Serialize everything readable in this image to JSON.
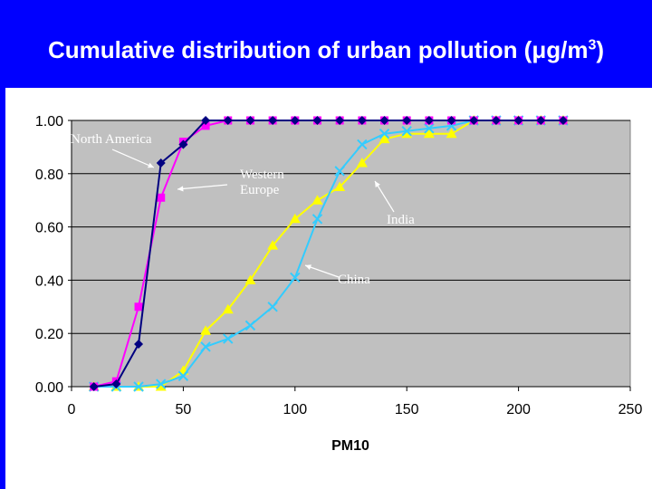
{
  "slide": {
    "title": "Cumulative distribution of urban pollution (",
    "title_unit": "μg/m",
    "title_exp": "3",
    "title_close": ")"
  },
  "colors": {
    "background": "#0000ff",
    "plot_area": "#c0c0c0",
    "north_america": "#000080",
    "western_europe": "#ff00ff",
    "india": "#ffff00",
    "china": "#33ccff"
  },
  "chart_data": {
    "type": "line",
    "xlabel": "PM10",
    "ylabel": "",
    "xlim": [
      0,
      250
    ],
    "ylim": [
      0,
      1
    ],
    "x_ticks": [
      "0",
      "50",
      "100",
      "150",
      "200",
      "250"
    ],
    "y_ticks": [
      "0.00",
      "0.20",
      "0.40",
      "0.60",
      "0.80",
      "1.00"
    ],
    "grid": true,
    "legend": "none",
    "series": [
      {
        "name": "North America",
        "marker": "diamond",
        "color": "#000080",
        "x": [
          10,
          20,
          30,
          40,
          50,
          60,
          70,
          80,
          90,
          100,
          110,
          120,
          130,
          140,
          150,
          160,
          170,
          180,
          190,
          200,
          210,
          220
        ],
        "y": [
          0.0,
          0.01,
          0.16,
          0.84,
          0.91,
          1.0,
          1.0,
          1.0,
          1.0,
          1.0,
          1.0,
          1.0,
          1.0,
          1.0,
          1.0,
          1.0,
          1.0,
          1.0,
          1.0,
          1.0,
          1.0,
          1.0
        ]
      },
      {
        "name": "Western Europe",
        "marker": "square",
        "color": "#ff00ff",
        "x": [
          10,
          20,
          30,
          40,
          50,
          60,
          70,
          80,
          90,
          100,
          110,
          120,
          130,
          140,
          150,
          160,
          170,
          180,
          190,
          200,
          210,
          220
        ],
        "y": [
          0.0,
          0.02,
          0.3,
          0.71,
          0.92,
          0.98,
          1.0,
          1.0,
          1.0,
          1.0,
          1.0,
          1.0,
          1.0,
          1.0,
          1.0,
          1.0,
          1.0,
          1.0,
          1.0,
          1.0,
          1.0,
          1.0
        ]
      },
      {
        "name": "India",
        "marker": "triangle",
        "color": "#ffff00",
        "x": [
          10,
          20,
          30,
          40,
          50,
          60,
          70,
          80,
          90,
          100,
          110,
          120,
          130,
          140,
          150,
          160,
          170,
          180,
          190,
          200,
          210,
          220
        ],
        "y": [
          0.0,
          0.0,
          0.0,
          0.0,
          0.06,
          0.21,
          0.29,
          0.4,
          0.53,
          0.63,
          0.7,
          0.75,
          0.84,
          0.93,
          0.95,
          0.95,
          0.95,
          1.0,
          1.0,
          1.0,
          1.0,
          1.0
        ]
      },
      {
        "name": "China",
        "marker": "x",
        "color": "#33ccff",
        "x": [
          10,
          20,
          30,
          40,
          50,
          60,
          70,
          80,
          90,
          100,
          110,
          120,
          130,
          140,
          150,
          160,
          170,
          180,
          190,
          200,
          210,
          220
        ],
        "y": [
          0.0,
          0.0,
          0.0,
          0.01,
          0.04,
          0.15,
          0.18,
          0.23,
          0.3,
          0.41,
          0.63,
          0.81,
          0.91,
          0.95,
          0.96,
          0.97,
          0.98,
          1.0,
          1.0,
          1.0,
          1.0,
          1.0
        ]
      }
    ],
    "annotations": [
      {
        "id": "na",
        "lines": [
          "North America"
        ]
      },
      {
        "id": "we",
        "lines": [
          "Western",
          "Europe"
        ]
      },
      {
        "id": "india",
        "lines": [
          "India"
        ]
      },
      {
        "id": "china",
        "lines": [
          "China"
        ]
      }
    ]
  }
}
